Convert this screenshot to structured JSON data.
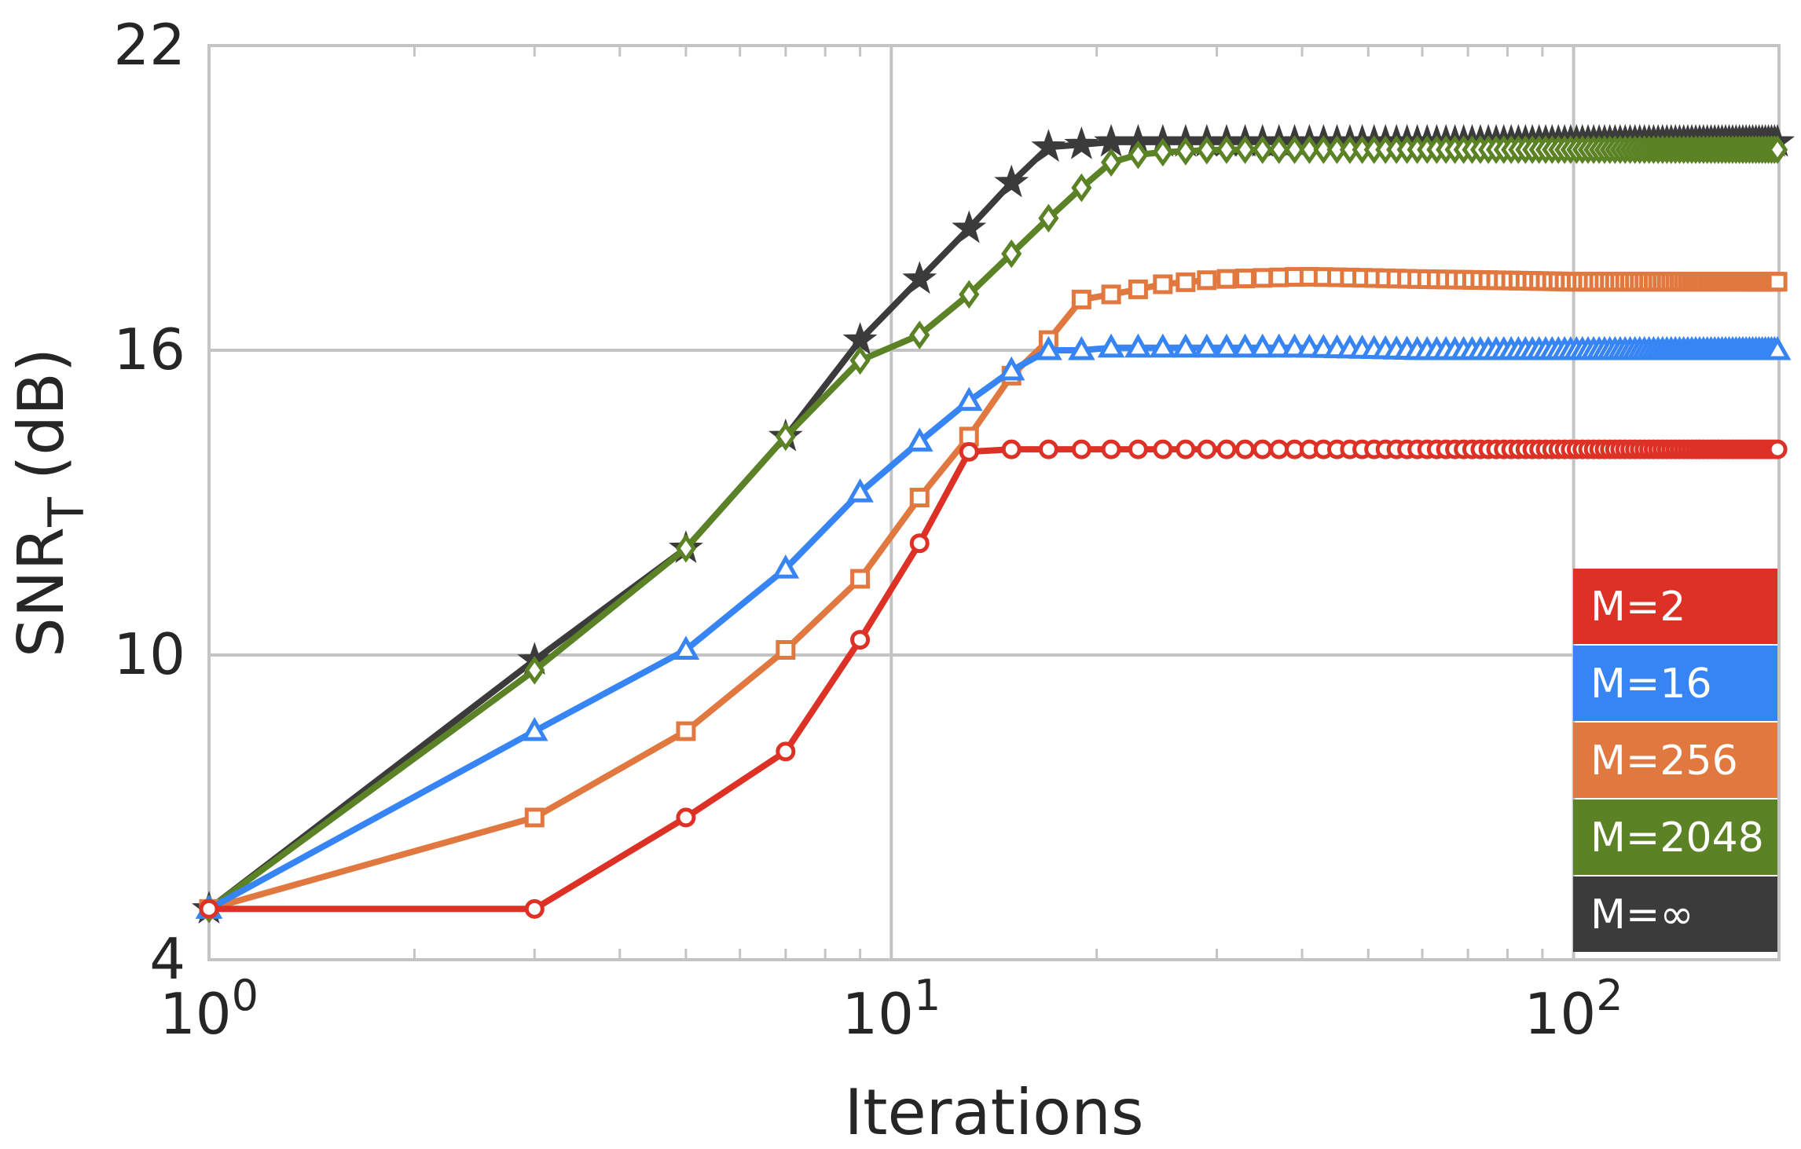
{
  "chart_data": {
    "type": "line",
    "xscale": "log",
    "xlim": [
      1,
      200
    ],
    "ylim": [
      4,
      22
    ],
    "xlabel": "Iterations",
    "ylabel": "SNR",
    "ylabel_sub": "T",
    "ylabel_unit": "(dB)",
    "yticks": [
      "4",
      "10",
      "16",
      "22"
    ],
    "xticks": [
      {
        "value": 1,
        "base": "10",
        "exp": "0"
      },
      {
        "value": 10,
        "base": "10",
        "exp": "1"
      },
      {
        "value": 100,
        "base": "10",
        "exp": "2"
      }
    ],
    "grid": true,
    "legend_position": "bottom-right",
    "series": [
      {
        "name": "M=2",
        "color": "#dd3126",
        "marker": "circle",
        "points": [
          [
            1,
            5
          ],
          [
            3,
            5
          ],
          [
            5,
            6.8
          ],
          [
            7,
            8.1
          ],
          [
            9,
            10.3
          ],
          [
            11,
            12.2
          ],
          [
            13,
            14
          ],
          [
            15,
            14.05
          ],
          [
            17,
            14.05
          ],
          [
            19,
            14.05
          ],
          [
            21,
            14.05
          ],
          [
            23,
            14.05
          ],
          [
            25,
            14.05
          ],
          [
            200,
            14.05
          ]
        ]
      },
      {
        "name": "M=16",
        "color": "#3785f4",
        "marker": "triangle",
        "points": [
          [
            1,
            5
          ],
          [
            3,
            8.5
          ],
          [
            5,
            10.1
          ],
          [
            7,
            11.7
          ],
          [
            9,
            13.2
          ],
          [
            11,
            14.2
          ],
          [
            13,
            15
          ],
          [
            15,
            15.6
          ],
          [
            17,
            16
          ],
          [
            19,
            16
          ],
          [
            21,
            16.05
          ],
          [
            23,
            16.05
          ],
          [
            25,
            16.05
          ],
          [
            30,
            16.05
          ],
          [
            40,
            16.05
          ],
          [
            60,
            16.0
          ],
          [
            200,
            16.0
          ]
        ]
      },
      {
        "name": "M=256",
        "color": "#e0783f",
        "marker": "square",
        "points": [
          [
            1,
            5
          ],
          [
            3,
            6.8
          ],
          [
            5,
            8.5
          ],
          [
            7,
            10.1
          ],
          [
            9,
            11.5
          ],
          [
            11,
            13.1
          ],
          [
            13,
            14.3
          ],
          [
            15,
            15.5
          ],
          [
            17,
            16.2
          ],
          [
            19,
            17
          ],
          [
            21,
            17.1
          ],
          [
            23,
            17.2
          ],
          [
            25,
            17.3
          ],
          [
            30,
            17.4
          ],
          [
            40,
            17.45
          ],
          [
            60,
            17.4
          ],
          [
            100,
            17.35
          ],
          [
            200,
            17.35
          ]
        ]
      },
      {
        "name": "M=2048",
        "color": "#5b8225",
        "marker": "diamond",
        "points": [
          [
            1,
            5
          ],
          [
            3,
            9.7
          ],
          [
            5,
            12.1
          ],
          [
            7,
            14.3
          ],
          [
            9,
            15.8
          ],
          [
            11,
            16.3
          ],
          [
            13,
            17.1
          ],
          [
            15,
            17.9
          ],
          [
            17,
            18.6
          ],
          [
            19,
            19.2
          ],
          [
            21,
            19.7
          ],
          [
            23,
            19.85
          ],
          [
            25,
            19.9
          ],
          [
            30,
            19.95
          ],
          [
            40,
            19.95
          ],
          [
            200,
            19.95
          ]
        ]
      },
      {
        "name": "M=∞",
        "color": "#3b3b3b",
        "marker": "star",
        "points": [
          [
            1,
            5
          ],
          [
            3,
            9.9
          ],
          [
            5,
            12.1
          ],
          [
            7,
            14.3
          ],
          [
            9,
            16.2
          ],
          [
            11,
            17.4
          ],
          [
            13,
            18.4
          ],
          [
            15,
            19.3
          ],
          [
            17,
            20
          ],
          [
            19,
            20.05
          ],
          [
            21,
            20.1
          ],
          [
            23,
            20.1
          ],
          [
            200,
            20.1
          ]
        ]
      }
    ]
  }
}
